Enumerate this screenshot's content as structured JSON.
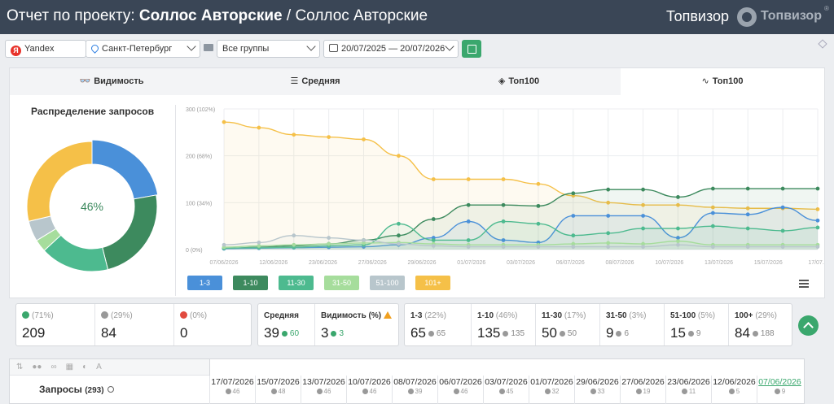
{
  "header": {
    "title_prefix": "Отчет по проекту:",
    "project_name": "Соллос Авторские",
    "title_sep": "/",
    "subproject": "Соллос Авторские",
    "brand_text": "Топвизор",
    "logo_text": "Топвизор",
    "reg_mark": "®"
  },
  "filters": {
    "engine": "Yandex",
    "region": "Санкт-Петербург",
    "groups": "Все группы",
    "dates": "20/07/2025 — 20/07/2026"
  },
  "tabs": [
    {
      "label": "Видимость",
      "icon": "glasses-icon",
      "glyph": "👓"
    },
    {
      "label": "Средняя",
      "icon": "bars-icon",
      "glyph": "☰"
    },
    {
      "label": "Топ100",
      "icon": "layers-icon",
      "glyph": "◈"
    },
    {
      "label": "Топ100",
      "icon": "trend-icon",
      "glyph": "∿"
    }
  ],
  "donut": {
    "title": "Распределение запросов",
    "center_label": "46%",
    "segments": [
      {
        "name": "1-3",
        "value": 65,
        "color": "#4a90d9"
      },
      {
        "name": "1-10",
        "value": 70,
        "color": "#3d8a5e"
      },
      {
        "name": "11-30",
        "value": 50,
        "color": "#4dba8f"
      },
      {
        "name": "31-50",
        "value": 9,
        "color": "#a6dd9c"
      },
      {
        "name": "51-100",
        "value": 15,
        "color": "#b8c6cc"
      },
      {
        "name": "101+",
        "value": 84,
        "color": "#f5c048"
      }
    ]
  },
  "chart_data": {
    "type": "line",
    "x": [
      "07/06/2026",
      "10/06/2026",
      "12/06/2026",
      "15/06/2026",
      "17/06/2026",
      "20/06/2026",
      "23/06/2026",
      "25/06/2026",
      "27/06/2026",
      "29/06/2026",
      "01/07/2026",
      "03/07/2026",
      "06/07/2026",
      "08/07/2026",
      "10/07/2026",
      "13/07/2026",
      "15/07/2026",
      "17/07/2026"
    ],
    "x_tick_labels": [
      "07/06/2026",
      "12/06/2026",
      "23/06/2026",
      "27/06/2026",
      "29/06/2026",
      "01/07/2026",
      "03/07/2026",
      "06/07/2026",
      "08/07/2026",
      "10/07/2026",
      "13/07/2026",
      "15/07/2026",
      "17/07..."
    ],
    "y_tick_labels": [
      "0 (0%)",
      "100 (34%)",
      "200 (68%)",
      "300 (102%)"
    ],
    "ylim": [
      0,
      300
    ],
    "grid": true,
    "series": [
      {
        "name": "101+",
        "color": "#f5c048",
        "values": [
          272,
          260,
          245,
          240,
          235,
          200,
          150,
          150,
          150,
          140,
          115,
          100,
          95,
          95,
          90,
          88,
          88,
          86
        ]
      },
      {
        "name": "1-10",
        "color": "#3d8a5e",
        "values": [
          2,
          5,
          8,
          12,
          20,
          30,
          65,
          95,
          95,
          93,
          120,
          128,
          128,
          112,
          130,
          130,
          130,
          130
        ]
      },
      {
        "name": "1-3",
        "color": "#4a90d9",
        "values": [
          2,
          3,
          4,
          5,
          6,
          10,
          25,
          60,
          20,
          15,
          72,
          72,
          72,
          25,
          78,
          75,
          90,
          62
        ]
      },
      {
        "name": "11-30",
        "color": "#4dba8f",
        "values": [
          3,
          4,
          5,
          8,
          10,
          55,
          20,
          20,
          60,
          55,
          30,
          35,
          45,
          45,
          50,
          45,
          40,
          47
        ]
      },
      {
        "name": "31-50",
        "color": "#a6dd9c",
        "values": [
          5,
          8,
          10,
          12,
          14,
          15,
          12,
          10,
          10,
          10,
          12,
          14,
          12,
          18,
          10,
          10,
          10,
          10
        ]
      },
      {
        "name": "51-100",
        "color": "#b8c6cc",
        "values": [
          10,
          15,
          30,
          25,
          20,
          12,
          8,
          6,
          6,
          6,
          6,
          6,
          6,
          10,
          6,
          6,
          6,
          6
        ]
      }
    ],
    "legend": [
      "1-3",
      "1-10",
      "11-30",
      "31-50",
      "51-100",
      "101+"
    ],
    "legend_position": "bottom-left"
  },
  "stats": {
    "up": {
      "pct": "(71%)",
      "value": "209"
    },
    "same": {
      "pct": "(29%)",
      "value": "84"
    },
    "down": {
      "pct": "(0%)",
      "value": "0"
    },
    "avg": {
      "label": "Средняя",
      "value": "39",
      "delta": "60"
    },
    "visibility": {
      "label": "Видимость (%)",
      "value": "3",
      "delta": "3"
    },
    "ranges": [
      {
        "label": "1-3",
        "pct": "(22%)",
        "value": "65",
        "delta": "65"
      },
      {
        "label": "1-10",
        "pct": "(46%)",
        "value": "135",
        "delta": "135"
      },
      {
        "label": "11-30",
        "pct": "(17%)",
        "value": "50",
        "delta": "50"
      },
      {
        "label": "31-50",
        "pct": "(3%)",
        "value": "9",
        "delta": "6"
      },
      {
        "label": "51-100",
        "pct": "(5%)",
        "value": "15",
        "delta": "9"
      },
      {
        "label": "100+",
        "pct": "(29%)",
        "value": "84",
        "delta": "188"
      }
    ]
  },
  "table": {
    "queries_label": "Запросы",
    "queries_count": "(293)",
    "dates": [
      {
        "date": "17/07/2026",
        "n": "46"
      },
      {
        "date": "15/07/2026",
        "n": "48"
      },
      {
        "date": "13/07/2026",
        "n": "46"
      },
      {
        "date": "10/07/2026",
        "n": "46"
      },
      {
        "date": "08/07/2026",
        "n": "39"
      },
      {
        "date": "06/07/2026",
        "n": "46"
      },
      {
        "date": "03/07/2026",
        "n": "45"
      },
      {
        "date": "01/07/2026",
        "n": "32"
      },
      {
        "date": "29/06/2026",
        "n": "33"
      },
      {
        "date": "27/06/2026",
        "n": "19"
      },
      {
        "date": "23/06/2026",
        "n": "11"
      },
      {
        "date": "12/06/2026",
        "n": "5"
      },
      {
        "date": "07/06/2026",
        "n": "9"
      }
    ]
  }
}
